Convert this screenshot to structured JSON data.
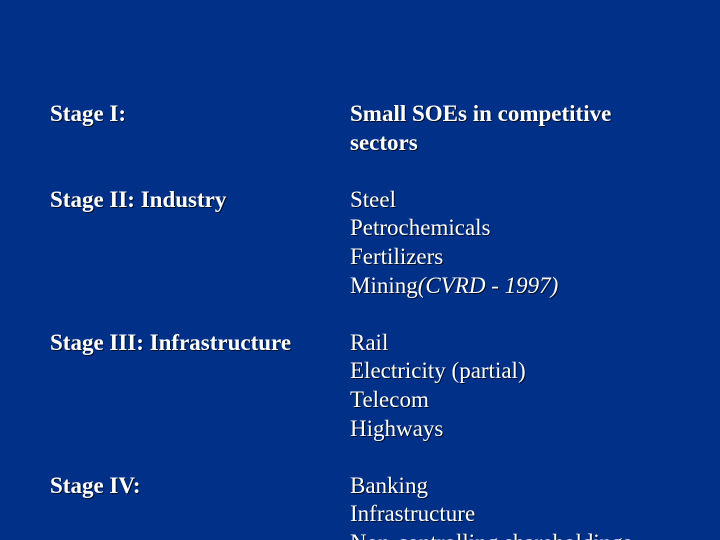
{
  "background_color": "#003087",
  "text_color": "#ffffff",
  "font_family": "Garamond serif",
  "font_size_pt": 23,
  "rows": [
    {
      "label": "Stage I:",
      "heading": "Small SOEs in competitive sectors",
      "items": []
    },
    {
      "label": "Stage II: Industry",
      "heading": "",
      "items": [
        {
          "text": "Steel",
          "note": ""
        },
        {
          "text": "Petrochemicals",
          "note": ""
        },
        {
          "text": "Fertilizers",
          "note": ""
        },
        {
          "text": "Mining",
          "note": "(CVRD - 1997)"
        }
      ]
    },
    {
      "label": "Stage III: Infrastructure",
      "heading": "",
      "items": [
        {
          "text": "Rail",
          "note": ""
        },
        {
          "text": "Electricity (partial)",
          "note": ""
        },
        {
          "text": "Telecom",
          "note": ""
        },
        {
          "text": "Highways",
          "note": ""
        }
      ]
    },
    {
      "label": "Stage IV:",
      "heading": "",
      "items": [
        {
          "text": "Banking",
          "note": ""
        },
        {
          "text": "Infrastructure",
          "note": ""
        },
        {
          "text": "Non-controlling shareholdings",
          "note": ""
        }
      ]
    }
  ]
}
